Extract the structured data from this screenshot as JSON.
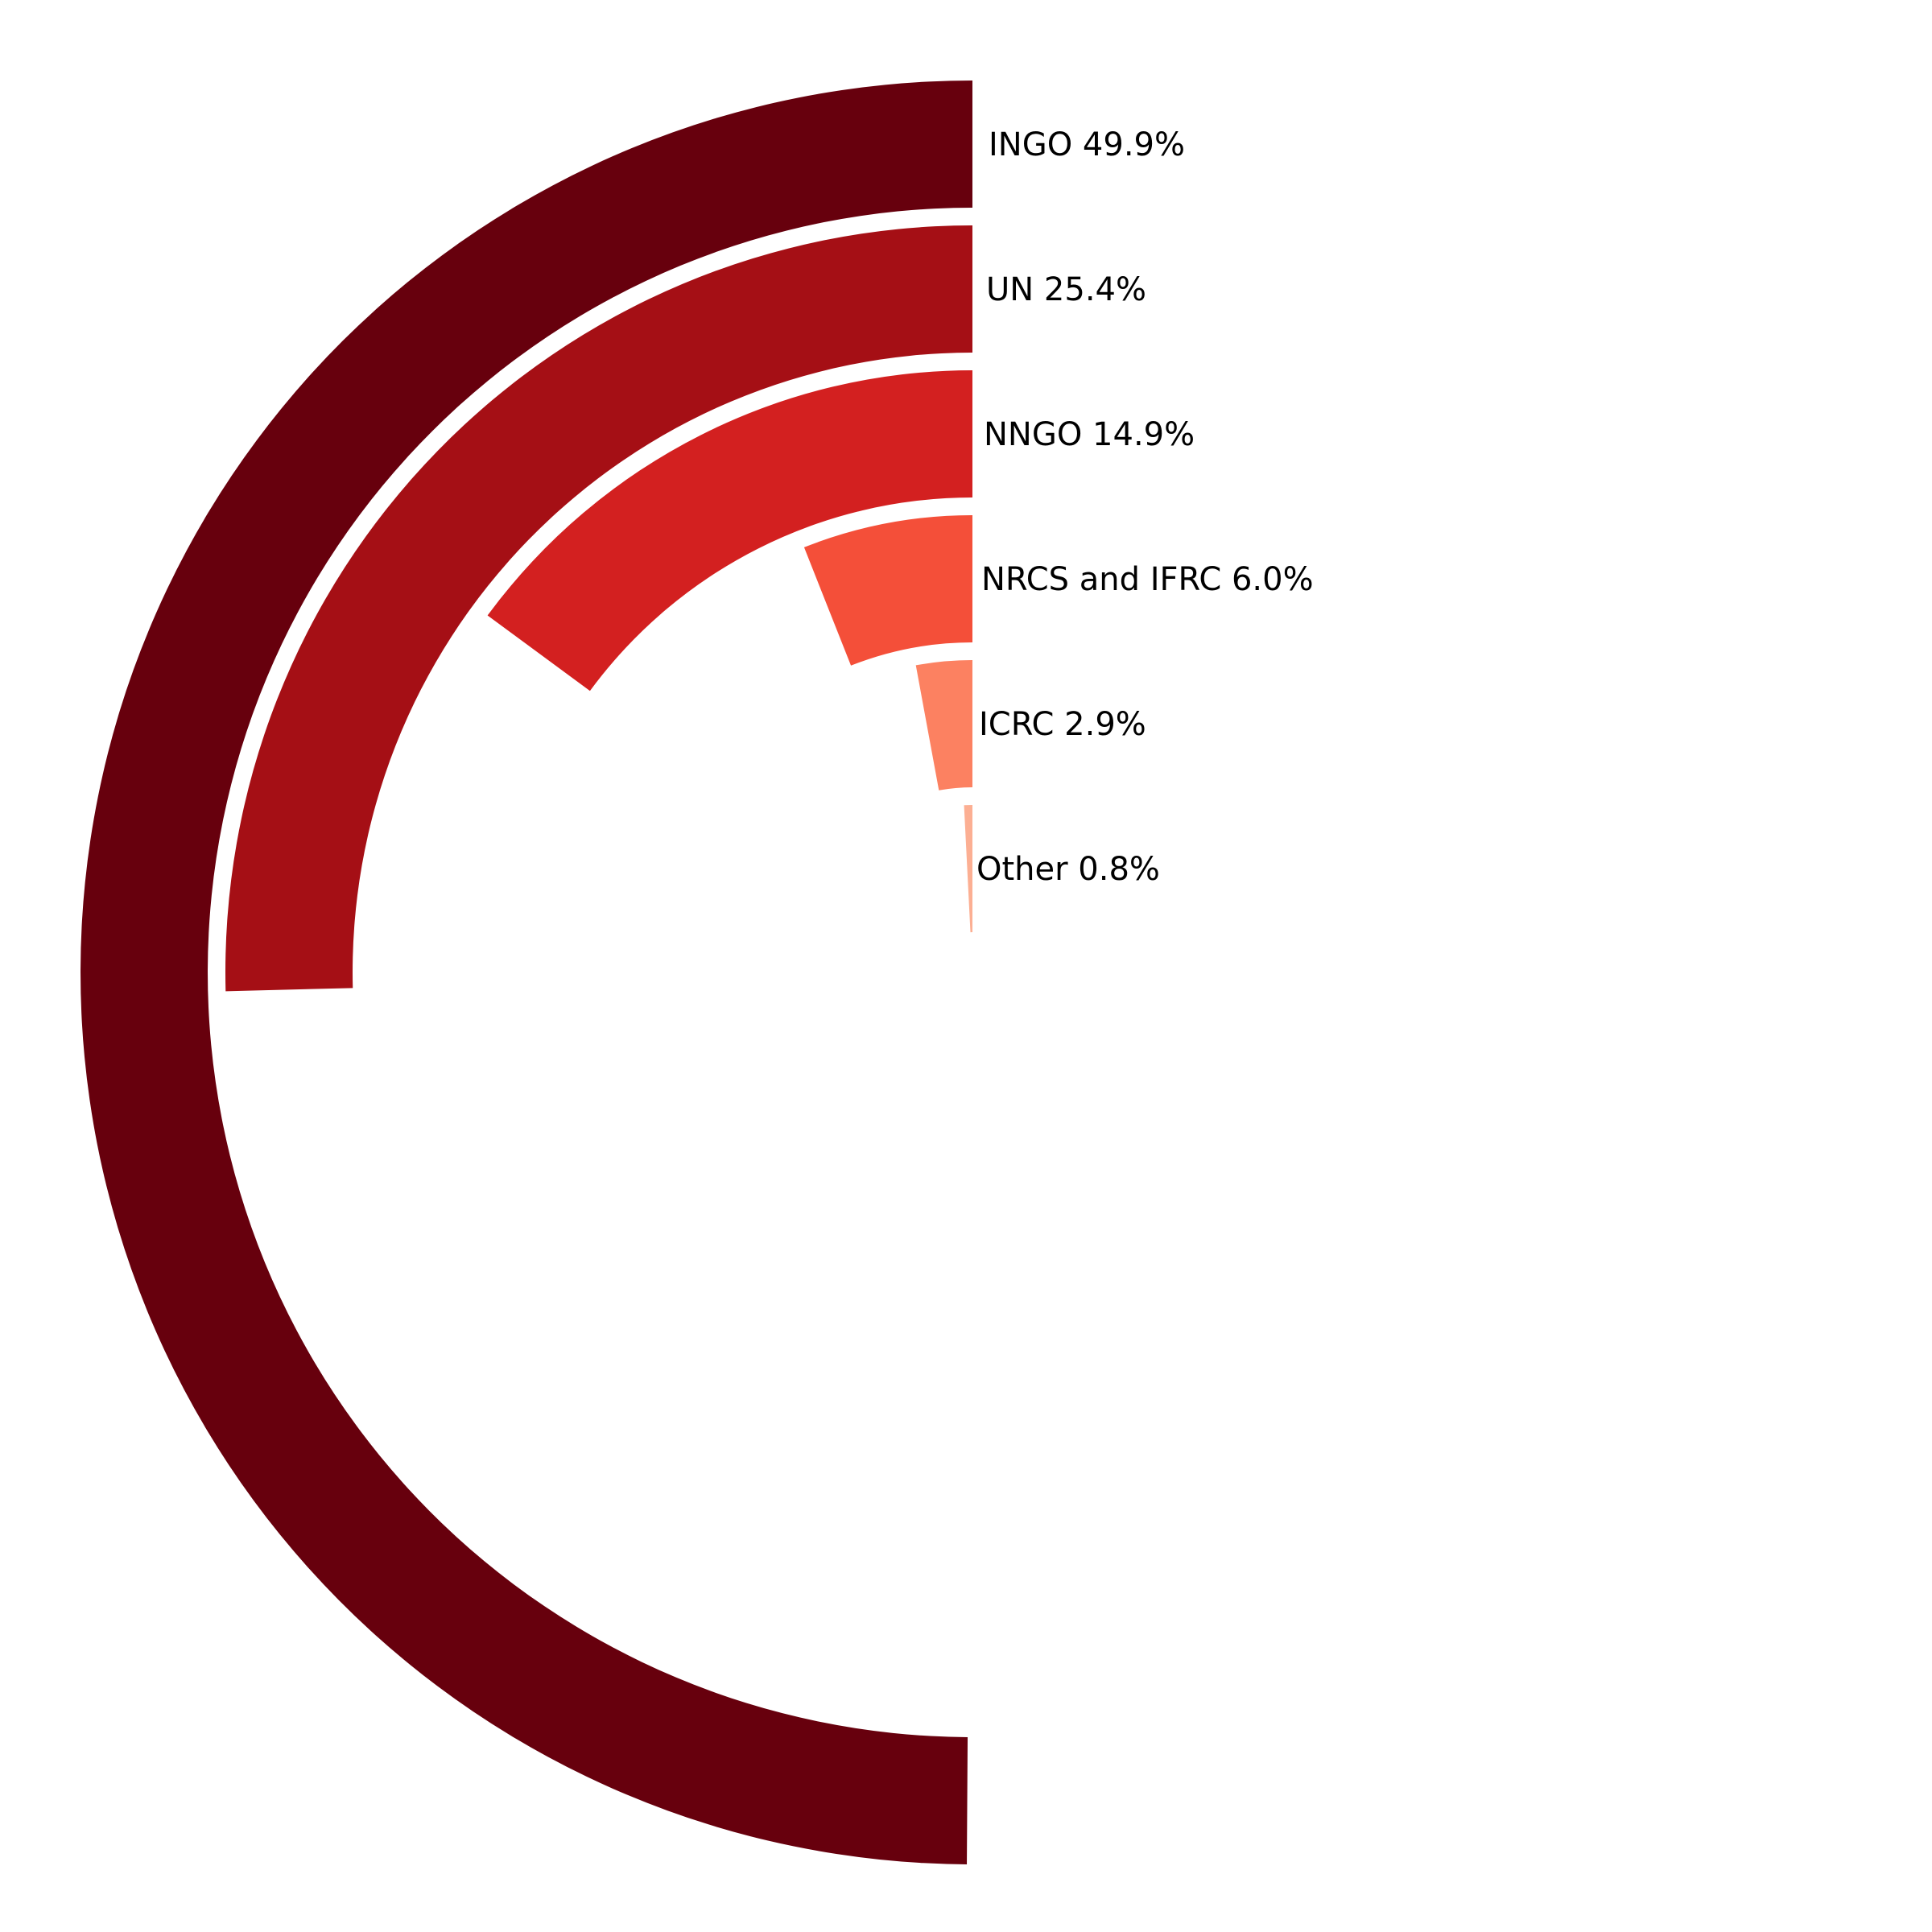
{
  "chart_data": {
    "type": "radial-bar",
    "title": "",
    "categories": [
      "INGO",
      "UN",
      "NNGO",
      "NRCS and IFRC",
      "ICRC",
      "Other"
    ],
    "values": [
      49.9,
      25.4,
      14.9,
      6.0,
      2.9,
      0.8
    ],
    "labels": [
      "INGO 49.9%",
      "UN 25.4%",
      "NNGO 14.9%",
      "NRCS and IFRC 6.0%",
      "ICRC 2.9%",
      "Other 0.8%"
    ],
    "colors": [
      "#67000d",
      "#a50f15",
      "#d32020",
      "#f44f39",
      "#fc8161",
      "#fcaf93"
    ],
    "unit": "%",
    "full_circle_value": 100,
    "start": "top",
    "direction": "counterclockwise",
    "legend": "none",
    "grid": false
  }
}
